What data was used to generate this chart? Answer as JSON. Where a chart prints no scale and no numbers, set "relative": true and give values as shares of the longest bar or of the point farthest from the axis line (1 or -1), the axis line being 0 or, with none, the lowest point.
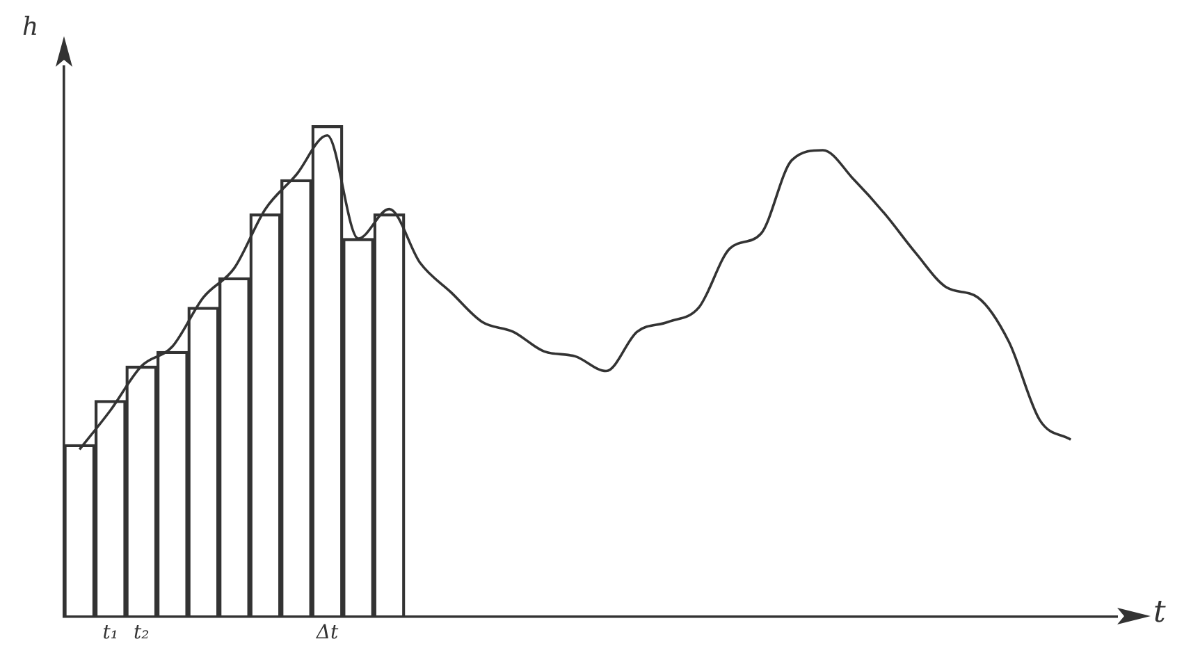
{
  "chart_data": {
    "type": "bar",
    "relative": true,
    "xlabel": "t",
    "ylabel": "h",
    "categories": [
      null,
      "t₁",
      "t₂",
      null,
      null,
      null,
      null,
      null,
      "Δt",
      null,
      null,
      null,
      null,
      null,
      null,
      null,
      null,
      null,
      null,
      null,
      null,
      null,
      null,
      null,
      null,
      null,
      null,
      null,
      null,
      null,
      null,
      null,
      null,
      null
    ],
    "series": [
      {
        "color": "#333333",
        "values": [
          0.35,
          0.44,
          0.51,
          0.54,
          0.63,
          0.69,
          0.82,
          0.89,
          1.0,
          0.77,
          0.82,
          null,
          null,
          null,
          null,
          null,
          null,
          null,
          null,
          null,
          null,
          null,
          null,
          null,
          null,
          null,
          null,
          null,
          null,
          null,
          null,
          null,
          null,
          null
        ]
      },
      {
        "type": "line",
        "color": "#333333",
        "values": [
          0.34,
          0.42,
          0.51,
          0.55,
          0.65,
          0.71,
          0.83,
          0.9,
          0.98,
          0.77,
          0.83,
          0.72,
          0.66,
          0.6,
          0.58,
          0.54,
          0.53,
          0.5,
          0.58,
          0.6,
          0.63,
          0.75,
          0.78,
          0.93,
          0.95,
          0.89,
          0.82,
          0.74,
          0.67,
          0.65,
          0.56,
          0.4,
          0.36,
          null
        ]
      }
    ],
    "legend": false,
    "grid": false,
    "marker": "none",
    "line_style": "solid"
  }
}
